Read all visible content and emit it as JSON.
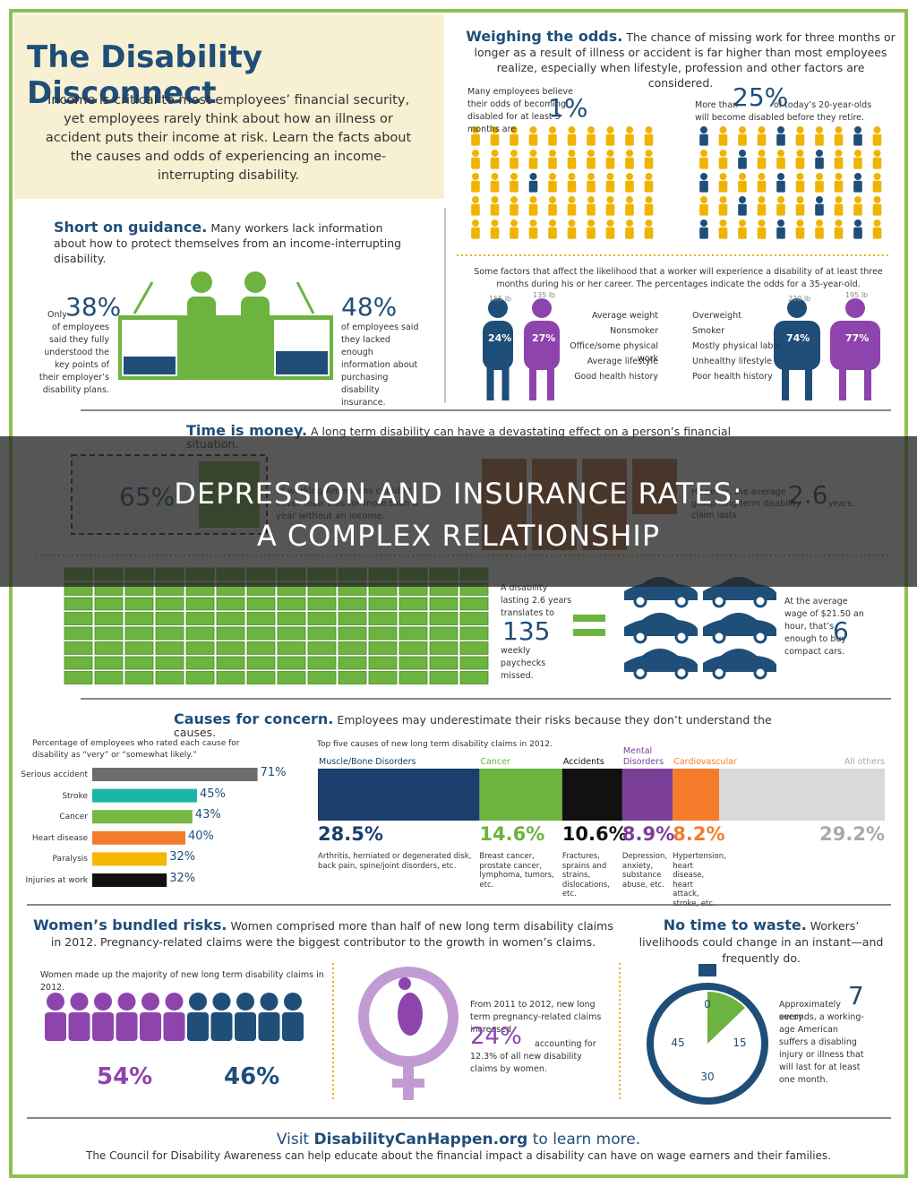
{
  "overlay": {
    "line1": "DEPRESSION AND INSURANCE RATES:",
    "line2": "A COMPLEX RELATIONSHIP"
  },
  "header": {
    "title": "The Disability Disconnect",
    "intro": "Income is critical to most employees’ financial security, yet employees rarely think about how an illness or accident puts their income at risk. Learn the facts about the causes and odds of experiencing an income-interrupting disability."
  },
  "odds": {
    "heading": "Weighing the odds.",
    "text": "The chance of missing work for three months or longer as a result of illness or accident is far higher than most employees realize, especially when lifestyle, profession and other factors are considered.",
    "left": {
      "text": "Many employees believe their odds of becoming disabled for at least 3 months are",
      "figure": "1%"
    },
    "right": {
      "pre": "More than",
      "figure": "25%",
      "post": "of today’s 20-year-olds will become disabled before they retire."
    },
    "factors_intro": "Some factors that affect the likelihood that a worker will experience a disability of at least three months during his or her career. The percentages indicate the odds for a 35-year-old.",
    "low": {
      "weights": [
        "155 lb",
        "135 lb"
      ],
      "odds": [
        "24%",
        "27%"
      ],
      "factors": [
        "Average weight",
        "Nonsmoker",
        "Office/some physical work",
        "Average lifestyle",
        "Good health history"
      ]
    },
    "high": {
      "weights": [
        "230 lb",
        "195 lb"
      ],
      "odds": [
        "74%",
        "77%"
      ],
      "factors": [
        "Overweight",
        "Smoker",
        "Mostly physical labor",
        "Unhealthy lifestyle",
        "Poor health history"
      ]
    }
  },
  "guidance": {
    "heading": "Short on guidance.",
    "text": "Many workers lack information about how to protect themselves from an income-interrupting disability.",
    "left": {
      "pre": "Only",
      "figure": "38%",
      "text": "of employees said they fully understood the key points of their employer’s disability plans."
    },
    "right": {
      "figure": "48%",
      "text": "of employees said they lacked enough information about purchasing disability insurance."
    }
  },
  "time": {
    "heading": "Time is money.",
    "text": "A long term disability can have a devastating effect on a person’s financial situation.",
    "figure": "65%",
    "figure_text": "of working Americans couldn’t cover their bills for more than a year without an income.",
    "claim_text": "However, the average group long term disability claim lasts",
    "claim_figure": "2.6",
    "claim_unit": "years.",
    "paychecks_text": "A disability lasting 2.6 years translates to",
    "paychecks_figure": "135",
    "paychecks_unit": "weekly paychecks missed.",
    "cars_text": "At the average wage of $21.50 an hour, that’s enough to buy",
    "cars_figure": "6",
    "cars_unit": "compact cars."
  },
  "causes": {
    "heading": "Causes for concern.",
    "text": "Employees may underestimate their risks because they don’t understand the causes.",
    "rated": {
      "caption": "Percentage of employees who rated each cause for disability as “very” or “somewhat likely.”",
      "categories": [
        "Serious accident",
        "Stroke",
        "Cancer",
        "Heart disease",
        "Paralysis",
        "Injuries at work"
      ],
      "values": [
        71,
        45,
        43,
        40,
        32,
        32
      ],
      "value_labels": [
        "71%",
        "45%",
        "43%",
        "40%",
        "32%",
        "32%"
      ],
      "colors": [
        "#6d6d6d",
        "#1bb5a7",
        "#76b843",
        "#f37b2c",
        "#f5b800",
        "#111111"
      ]
    },
    "top": {
      "caption": "Top five causes of new long term disability claims in 2012.",
      "categories": [
        "Muscle/Bone Disorders",
        "Cancer",
        "Accidents",
        "Mental Disorders",
        "Cardiovascular",
        "All others"
      ],
      "values": [
        28.5,
        14.6,
        10.6,
        8.9,
        8.2,
        29.2
      ],
      "value_labels": [
        "28.5%",
        "14.6%",
        "10.6%",
        "8.9%",
        "8.2%",
        "29.2%"
      ],
      "colors": [
        "#1a3e6e",
        "#6cb33f",
        "#111111",
        "#7b3f98",
        "#f47c2b",
        "#d9d9d9"
      ],
      "descriptions": [
        "Arthritis, herniated or degenerated disk, back pain, spine/joint disorders, etc.",
        "Breast cancer, prostate cancer, lymphoma, tumors, etc.",
        "Fractures, sprains and strains, dislocations, etc.",
        "Depression, anxiety, substance abuse, etc.",
        "Hypertension, heart disease, heart attack, stroke, etc."
      ]
    }
  },
  "women": {
    "heading": "Women’s bundled risks.",
    "text": "Women comprised more than half of new long term disability claims in 2012. Pregnancy-related claims were the biggest contributor to the growth in women’s claims.",
    "caption": "Women made up the majority of new long term disability claims in 2012.",
    "women_figure": "54%",
    "men_figure": "46%",
    "preg_text": "From 2011 to 2012, new long term pregnancy-related claims increased",
    "preg_figure": "24%",
    "preg_tail": "accounting for 12.3% of all new disability claims by women."
  },
  "no_time": {
    "heading": "No time to waste.",
    "text": "Workers’ livelihoods could change in an instant—and frequently do.",
    "dial": [
      "0",
      "15",
      "30",
      "45"
    ],
    "pre": "Approximately every",
    "figure": "7",
    "post": "seconds, a working-age American suffers a disabling injury or illness that will last for at least one month."
  },
  "footer": {
    "pre": "Visit",
    "link": "DisabilityCanHappen.org",
    "post": "to learn more.",
    "text": "The Council for Disability Awareness can help educate about the financial impact a disability can have on wage earners and their families."
  }
}
